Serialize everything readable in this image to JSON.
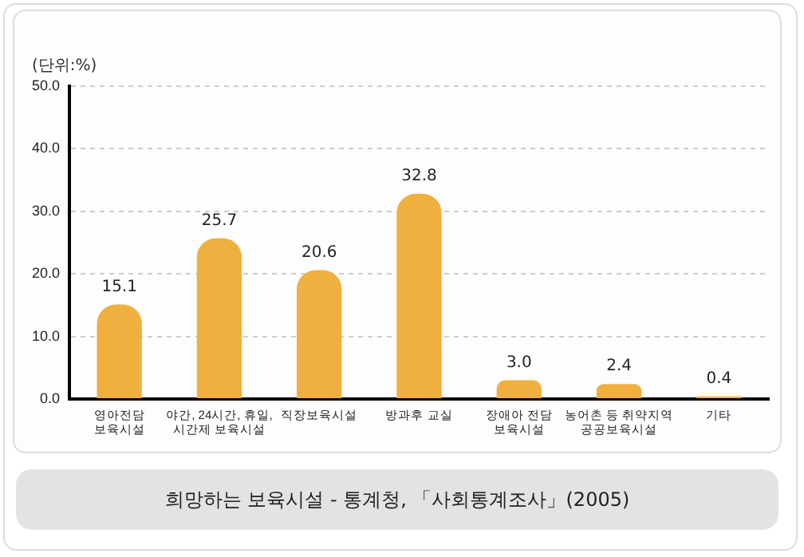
{
  "chart_data": {
    "type": "bar",
    "title": "희망하는 보육시설 - 통계청, 「사회통계조사」(2005)",
    "ylabel": "(단위:%)",
    "categories": [
      "영아전담\n보육시설",
      "야간, 24시간, 휴일,\n시간제 보육시설",
      "직장보육시설",
      "방과후 교실",
      "장애아 전담\n보육시설",
      "농어촌 등 취약지역\n공공보육시설",
      "기타"
    ],
    "values": [
      15.1,
      25.7,
      20.6,
      32.8,
      3.0,
      2.4,
      0.4
    ],
    "value_labels": [
      "15.1",
      "25.7",
      "20.6",
      "32.8",
      "3.0",
      "2.4",
      "0.4"
    ],
    "color": "#f0b040",
    "ylim": [
      0,
      50
    ],
    "yticks": [
      {
        "value": 0,
        "label": "0.0"
      },
      {
        "value": 10,
        "label": "10.0"
      },
      {
        "value": 20,
        "label": "20.0"
      },
      {
        "value": 30,
        "label": "30.0"
      },
      {
        "value": 40,
        "label": "40.0"
      },
      {
        "value": 50,
        "label": "50.0"
      }
    ],
    "grid": "y"
  }
}
